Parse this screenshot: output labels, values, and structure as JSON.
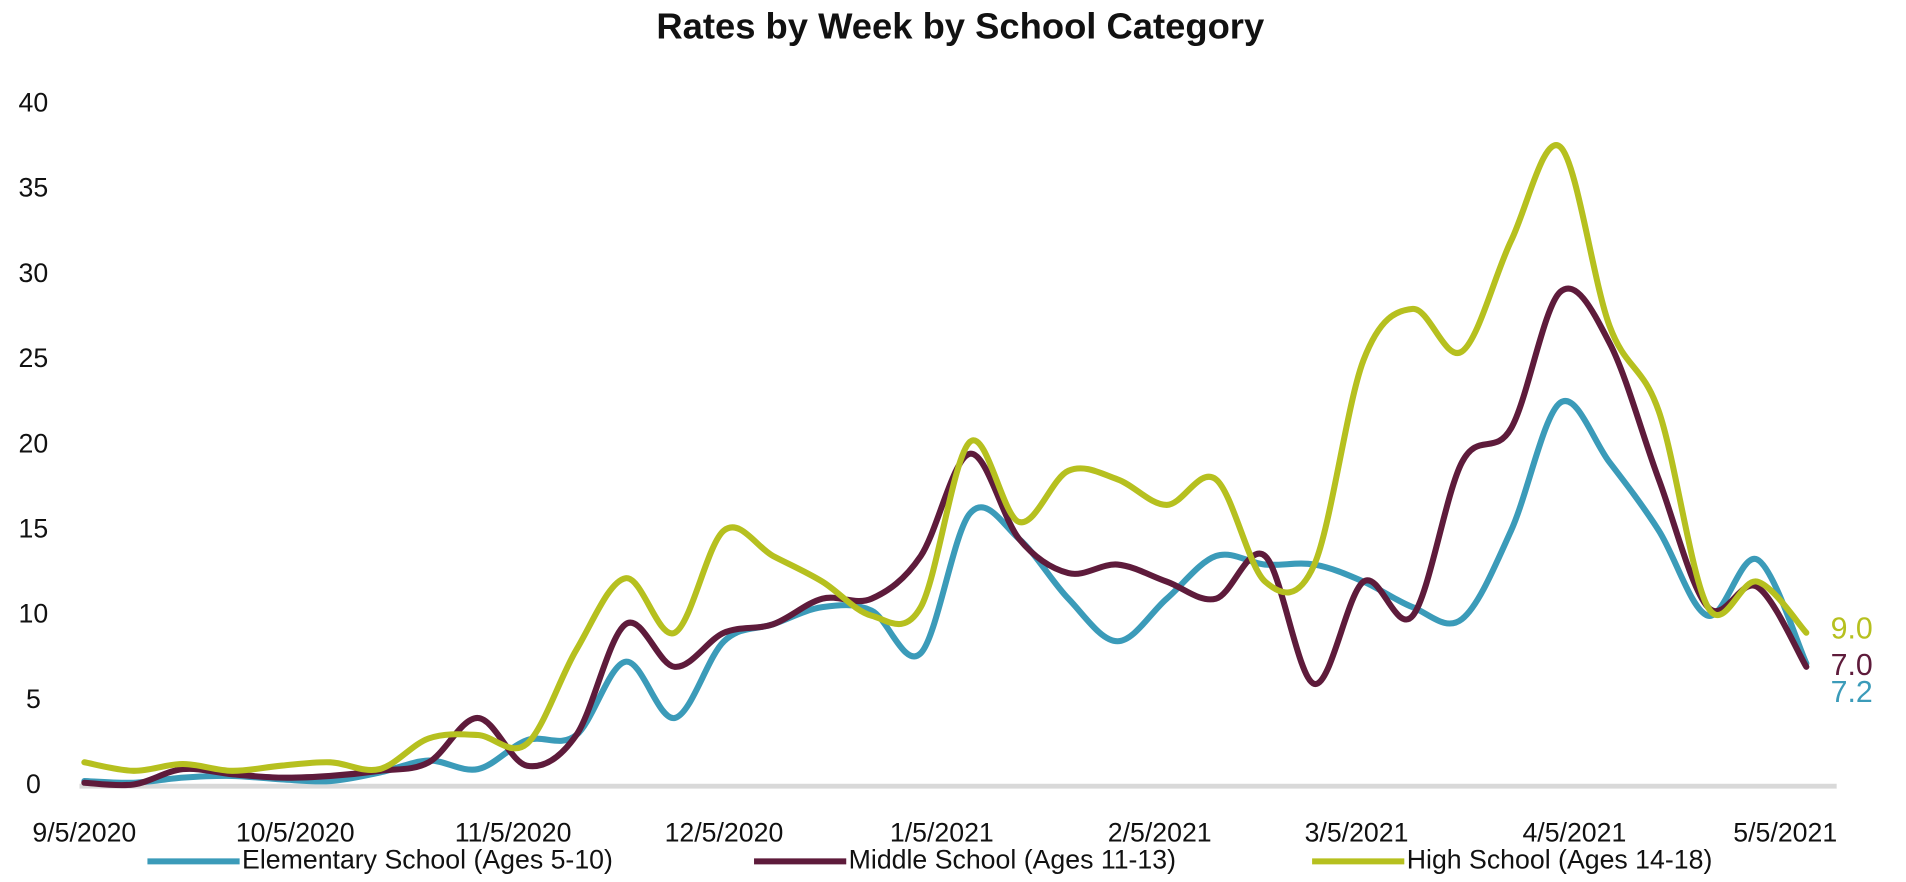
{
  "chart_data": {
    "type": "line",
    "title": "Rates by Week by School Category",
    "x": [
      "9/5/2020",
      "9/12/2020",
      "9/19/2020",
      "9/26/2020",
      "10/3/2020",
      "10/10/2020",
      "10/17/2020",
      "10/24/2020",
      "10/31/2020",
      "11/7/2020",
      "11/14/2020",
      "11/21/2020",
      "11/28/2020",
      "12/5/2020",
      "12/12/2020",
      "12/19/2020",
      "12/26/2020",
      "1/2/2021",
      "1/9/2021",
      "1/16/2021",
      "1/23/2021",
      "1/30/2021",
      "2/6/2021",
      "2/13/2021",
      "2/20/2021",
      "2/27/2021",
      "3/6/2021",
      "3/13/2021",
      "3/20/2021",
      "3/27/2021",
      "4/3/2021",
      "4/10/2021",
      "4/17/2021",
      "4/24/2021",
      "5/1/2021",
      "5/8/2021"
    ],
    "series": [
      {
        "name": "Elementary School (Ages 5-10)",
        "color": "#3b9bb9",
        "values": [
          0.3,
          0.2,
          0.5,
          0.6,
          0.4,
          0.3,
          0.8,
          1.5,
          1.0,
          2.7,
          3.0,
          7.3,
          4.0,
          8.5,
          9.5,
          10.5,
          10.3,
          7.8,
          16.0,
          14.5,
          11.0,
          8.5,
          11.0,
          13.5,
          13.0,
          13.0,
          12.0,
          10.5,
          9.8,
          15.0,
          22.5,
          19.0,
          15.0,
          10.0,
          13.3,
          7.2
        ],
        "value_labels": [
          null,
          null,
          null,
          null,
          null,
          null,
          null,
          null,
          null,
          null,
          null,
          null,
          null,
          null,
          null,
          null,
          null,
          null,
          null,
          null,
          null,
          null,
          null,
          null,
          null,
          null,
          null,
          null,
          null,
          null,
          null,
          null,
          null,
          null,
          null,
          "7.2"
        ]
      },
      {
        "name": "Middle School (Ages 11-13)",
        "color": "#5e1b3b",
        "values": [
          0.2,
          0.1,
          1.0,
          0.7,
          0.5,
          0.6,
          0.9,
          1.4,
          4.0,
          1.2,
          3.0,
          9.5,
          7.0,
          9.0,
          9.5,
          11.0,
          11.0,
          13.5,
          19.5,
          14.5,
          12.5,
          13.0,
          12.0,
          11.0,
          13.5,
          6.0,
          12.0,
          10.0,
          19.0,
          21.0,
          29.0,
          26.0,
          18.0,
          10.5,
          11.7,
          7.0
        ],
        "value_labels": [
          null,
          null,
          null,
          null,
          null,
          null,
          null,
          null,
          null,
          null,
          null,
          null,
          null,
          null,
          null,
          null,
          null,
          null,
          null,
          null,
          null,
          null,
          null,
          null,
          null,
          null,
          null,
          null,
          null,
          null,
          null,
          null,
          null,
          null,
          null,
          "7.0"
        ]
      },
      {
        "name": "High School (Ages 14-18)",
        "color": "#b6c01f",
        "values": [
          1.4,
          0.9,
          1.3,
          0.9,
          1.2,
          1.4,
          1.0,
          2.8,
          3.0,
          2.5,
          8.0,
          12.2,
          9.0,
          15.0,
          13.5,
          12.0,
          10.0,
          10.5,
          20.2,
          15.5,
          18.5,
          18.0,
          16.5,
          18.0,
          12.0,
          13.0,
          25.0,
          28.0,
          25.5,
          32.0,
          37.5,
          27.0,
          22.0,
          10.5,
          12.0,
          9.0
        ],
        "value_labels": [
          null,
          null,
          null,
          null,
          null,
          null,
          null,
          null,
          null,
          null,
          null,
          null,
          null,
          null,
          null,
          null,
          null,
          null,
          null,
          null,
          null,
          null,
          null,
          null,
          null,
          null,
          null,
          null,
          null,
          null,
          null,
          null,
          null,
          null,
          null,
          "9.0"
        ]
      }
    ],
    "xticks": [
      "9/5/2020",
      "10/5/2020",
      "11/5/2020",
      "12/5/2020",
      "1/5/2021",
      "2/5/2021",
      "3/5/2021",
      "4/5/2021",
      "5/5/2021"
    ],
    "ylim": [
      0,
      40
    ],
    "yticks": [
      0,
      5,
      10,
      15,
      20,
      25,
      30,
      35,
      40
    ],
    "grid": false,
    "legend": "bottom"
  }
}
